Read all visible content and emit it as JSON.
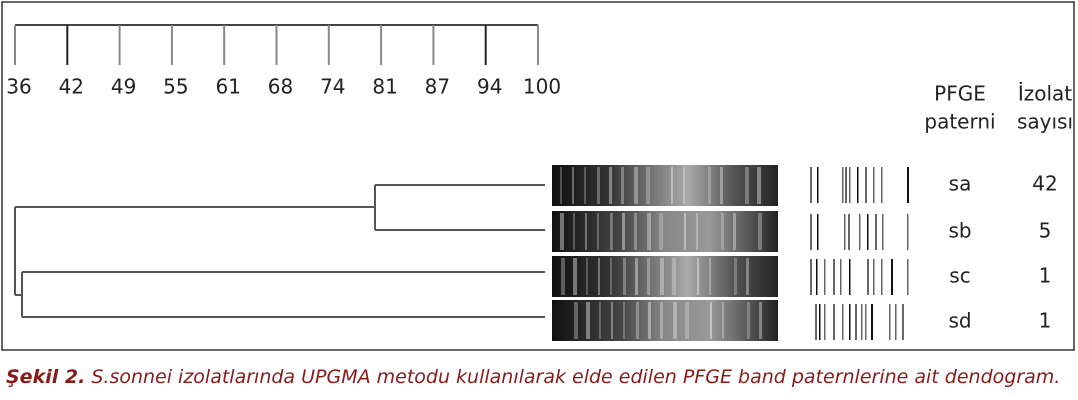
{
  "scale": {
    "ticks": [
      "36",
      "42",
      "49",
      "55",
      "61",
      "68",
      "74",
      "81",
      "87",
      "94",
      "100"
    ]
  },
  "headers": {
    "pattern": [
      "PFGE",
      "paterni"
    ],
    "count": [
      "İzolat",
      "sayısı"
    ]
  },
  "rows": [
    {
      "pattern": "sa",
      "count": "42"
    },
    {
      "pattern": "sb",
      "count": "5"
    },
    {
      "pattern": "sc",
      "count": "1"
    },
    {
      "pattern": "sd",
      "count": "1"
    }
  ],
  "caption": {
    "label": "Şekil 2.",
    "text": "S.sonnei izolatlarında UPGMA metodu kullanılarak elde edilen PFGE band paternlerine ait dendogram."
  }
}
